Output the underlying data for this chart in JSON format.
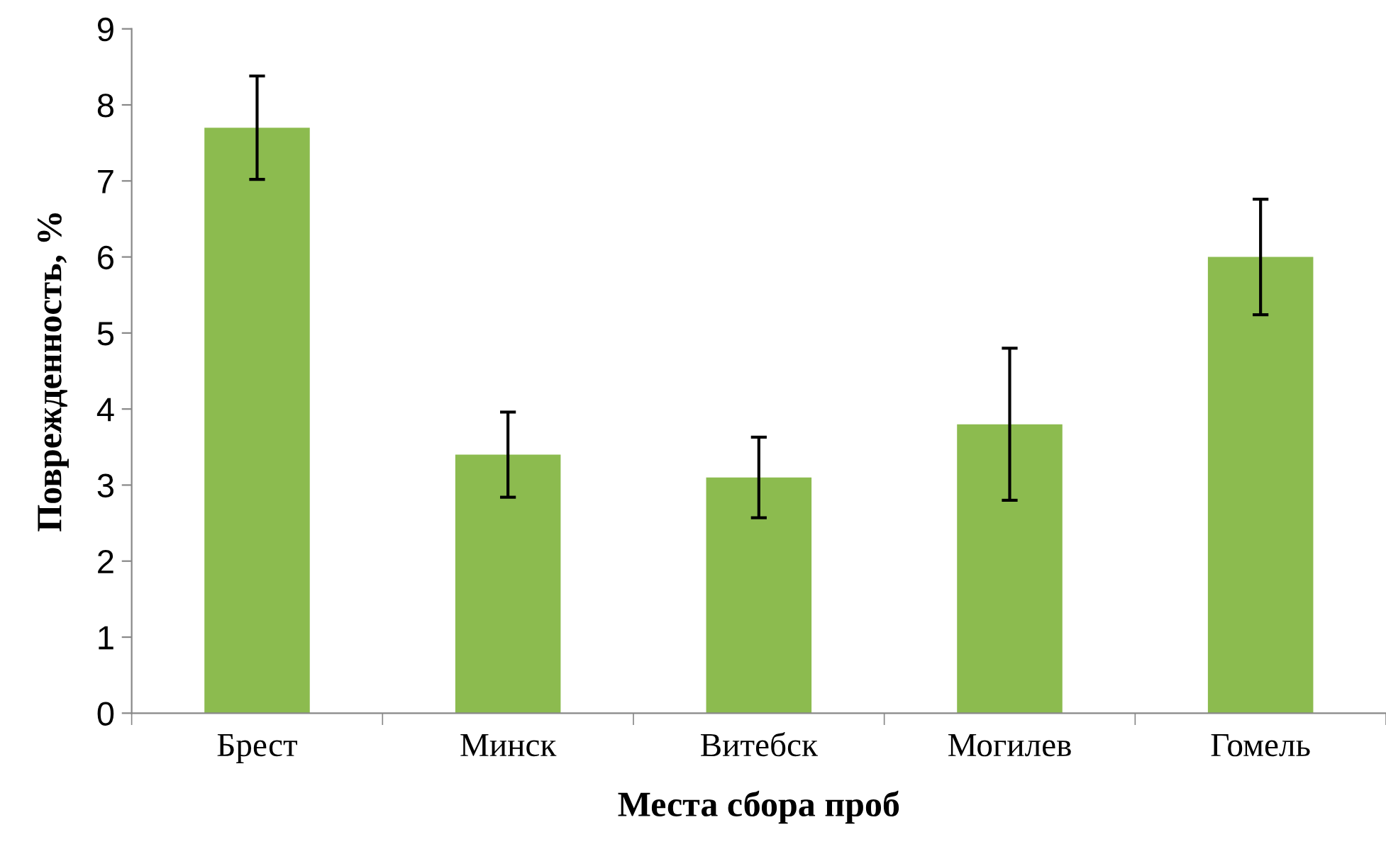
{
  "chart_data": {
    "type": "bar",
    "xlabel": "Места сбора проб",
    "ylabel": "Поврежденность, %",
    "categories": [
      "Брест",
      "Минск",
      "Витебск",
      "Могилев",
      "Гомель"
    ],
    "values": [
      7.7,
      3.4,
      3.1,
      3.8,
      6.0
    ],
    "errors": [
      0.68,
      0.56,
      0.53,
      1.0,
      0.76
    ],
    "color": "#8cbb4f",
    "ylim": [
      0,
      9
    ],
    "yticks": [
      0,
      1,
      2,
      3,
      4,
      5,
      6,
      7,
      8,
      9
    ],
    "grid": false,
    "legend": false
  }
}
